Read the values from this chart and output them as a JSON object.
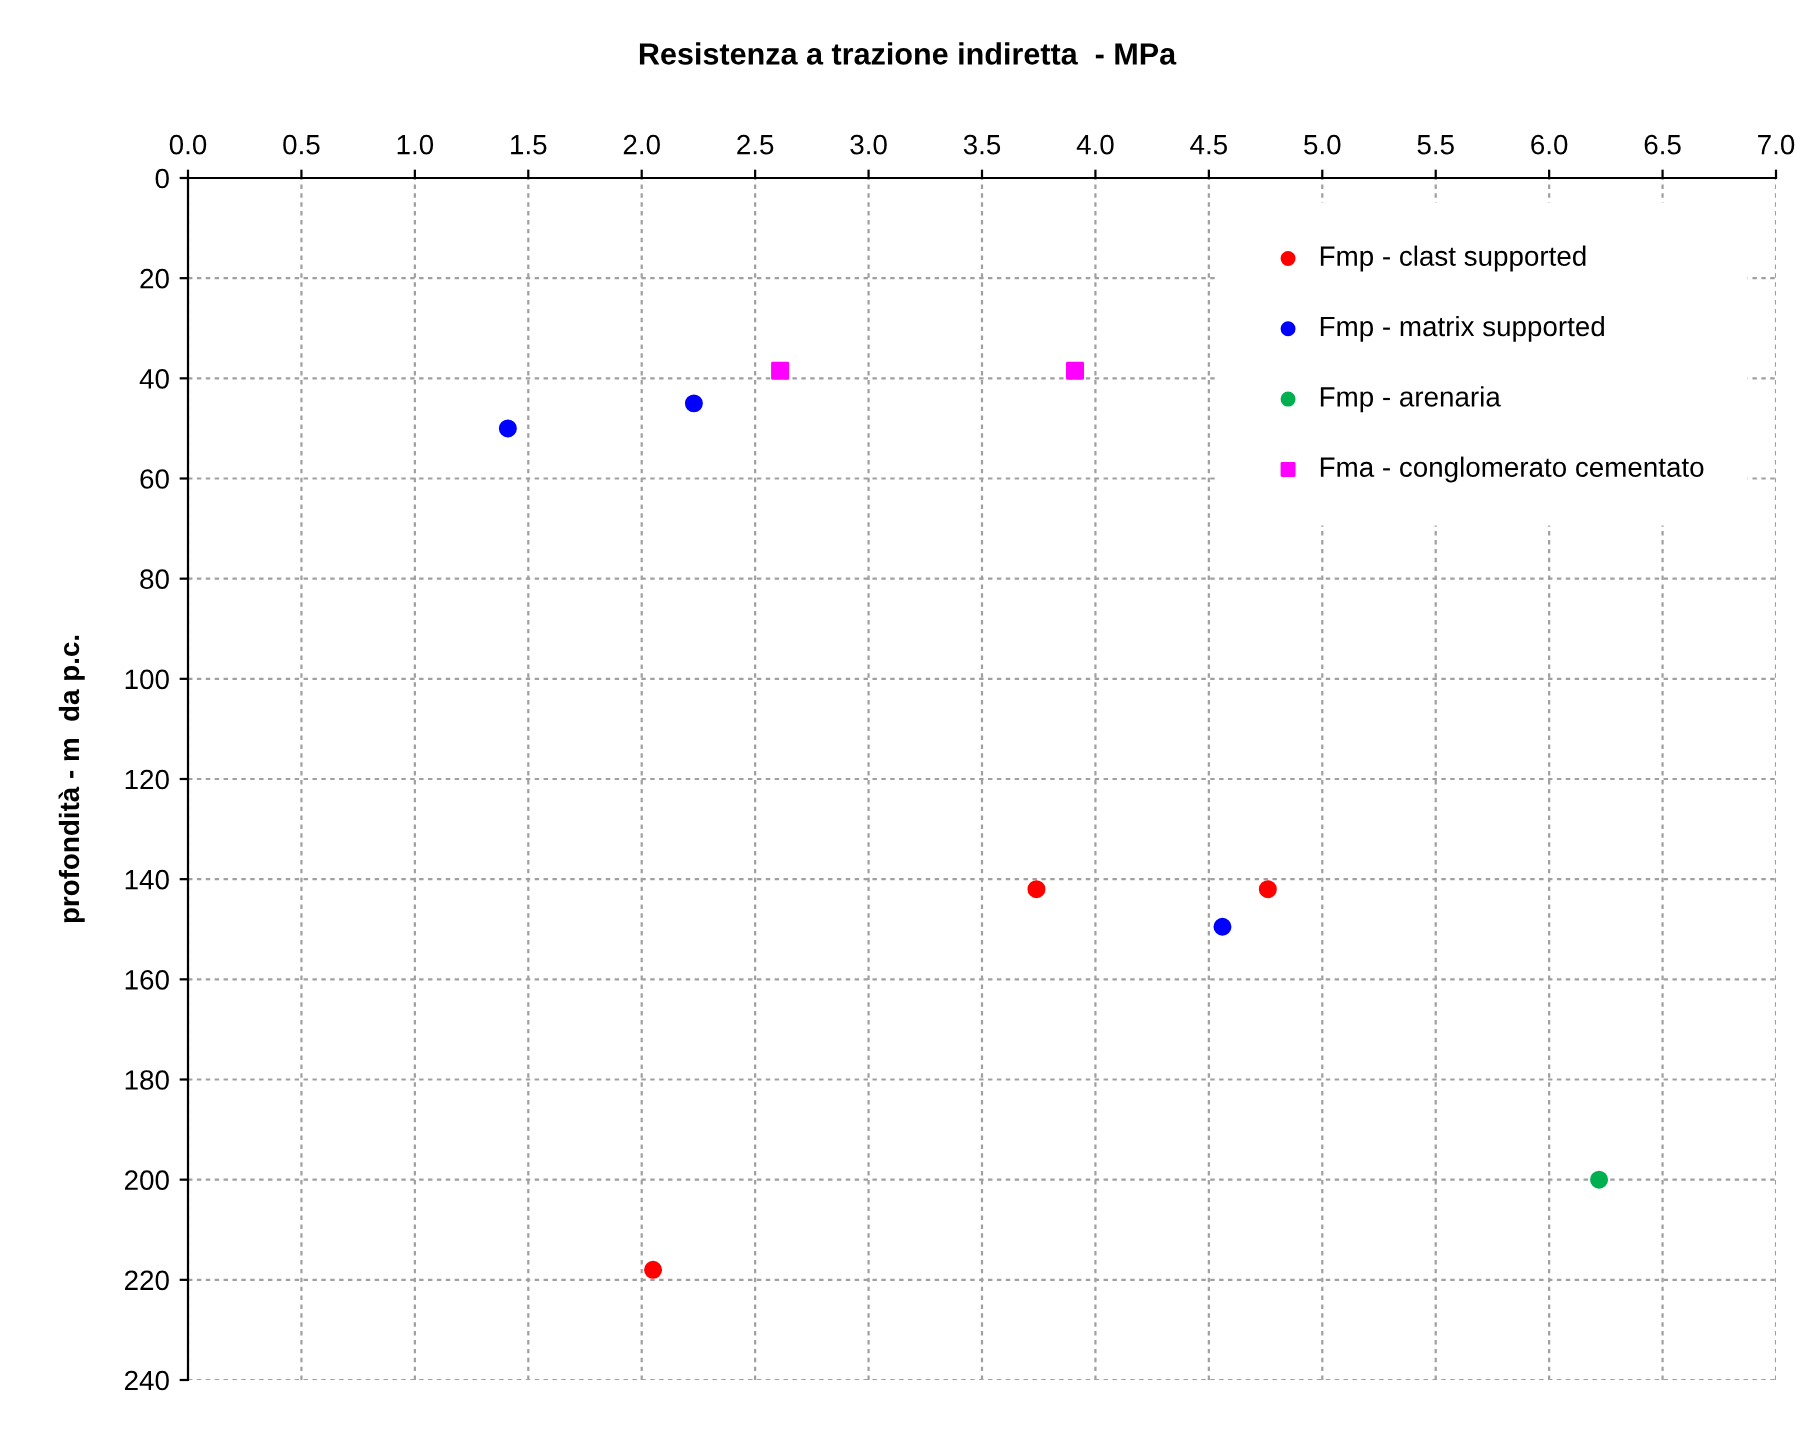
{
  "chart_data": {
    "type": "scatter",
    "title": "Resistenza a trazione indiretta  - MPa",
    "ylabel": "profondità - m  da p.c.",
    "xlim": [
      0,
      7
    ],
    "xticks": [
      {
        "value": 0,
        "label": "0.0"
      },
      {
        "value": 0.5,
        "label": "0.5"
      },
      {
        "value": 1,
        "label": "1.0"
      },
      {
        "value": 1.5,
        "label": "1.5"
      },
      {
        "value": 2,
        "label": "2.0"
      },
      {
        "value": 2.5,
        "label": "2.5"
      },
      {
        "value": 3,
        "label": "3.0"
      },
      {
        "value": 3.5,
        "label": "3.5"
      },
      {
        "value": 4,
        "label": "4.0"
      },
      {
        "value": 4.5,
        "label": "4.5"
      },
      {
        "value": 5,
        "label": "5.0"
      },
      {
        "value": 5.5,
        "label": "5.5"
      },
      {
        "value": 6,
        "label": "6.0"
      },
      {
        "value": 6.5,
        "label": "6.5"
      },
      {
        "value": 7,
        "label": "7.0"
      }
    ],
    "ylim": [
      240,
      0
    ],
    "yticks": [
      0,
      20,
      40,
      60,
      80,
      100,
      120,
      140,
      160,
      180,
      200,
      220,
      240
    ],
    "grid": true,
    "legend": "top right",
    "series": [
      {
        "name": "Fmp - clast supported",
        "color": "#ff0000",
        "marker": "circle",
        "x": [
          3.74,
          4.76,
          2.05
        ],
        "values": [
          142,
          142,
          218
        ]
      },
      {
        "name": "Fmp - matrix supported",
        "color": "#0000ff",
        "marker": "circle",
        "x": [
          1.41,
          2.23,
          4.56
        ],
        "values": [
          50,
          45,
          149.5
        ]
      },
      {
        "name": "Fmp - arenaria",
        "color": "#00b050",
        "marker": "circle",
        "x": [
          6.22
        ],
        "values": [
          200
        ]
      },
      {
        "name": "Fma - conglomerato cementato",
        "color": "#ff00ff",
        "marker": "square",
        "x": [
          2.61,
          3.91
        ],
        "values": [
          38.5,
          38.5
        ]
      }
    ]
  }
}
